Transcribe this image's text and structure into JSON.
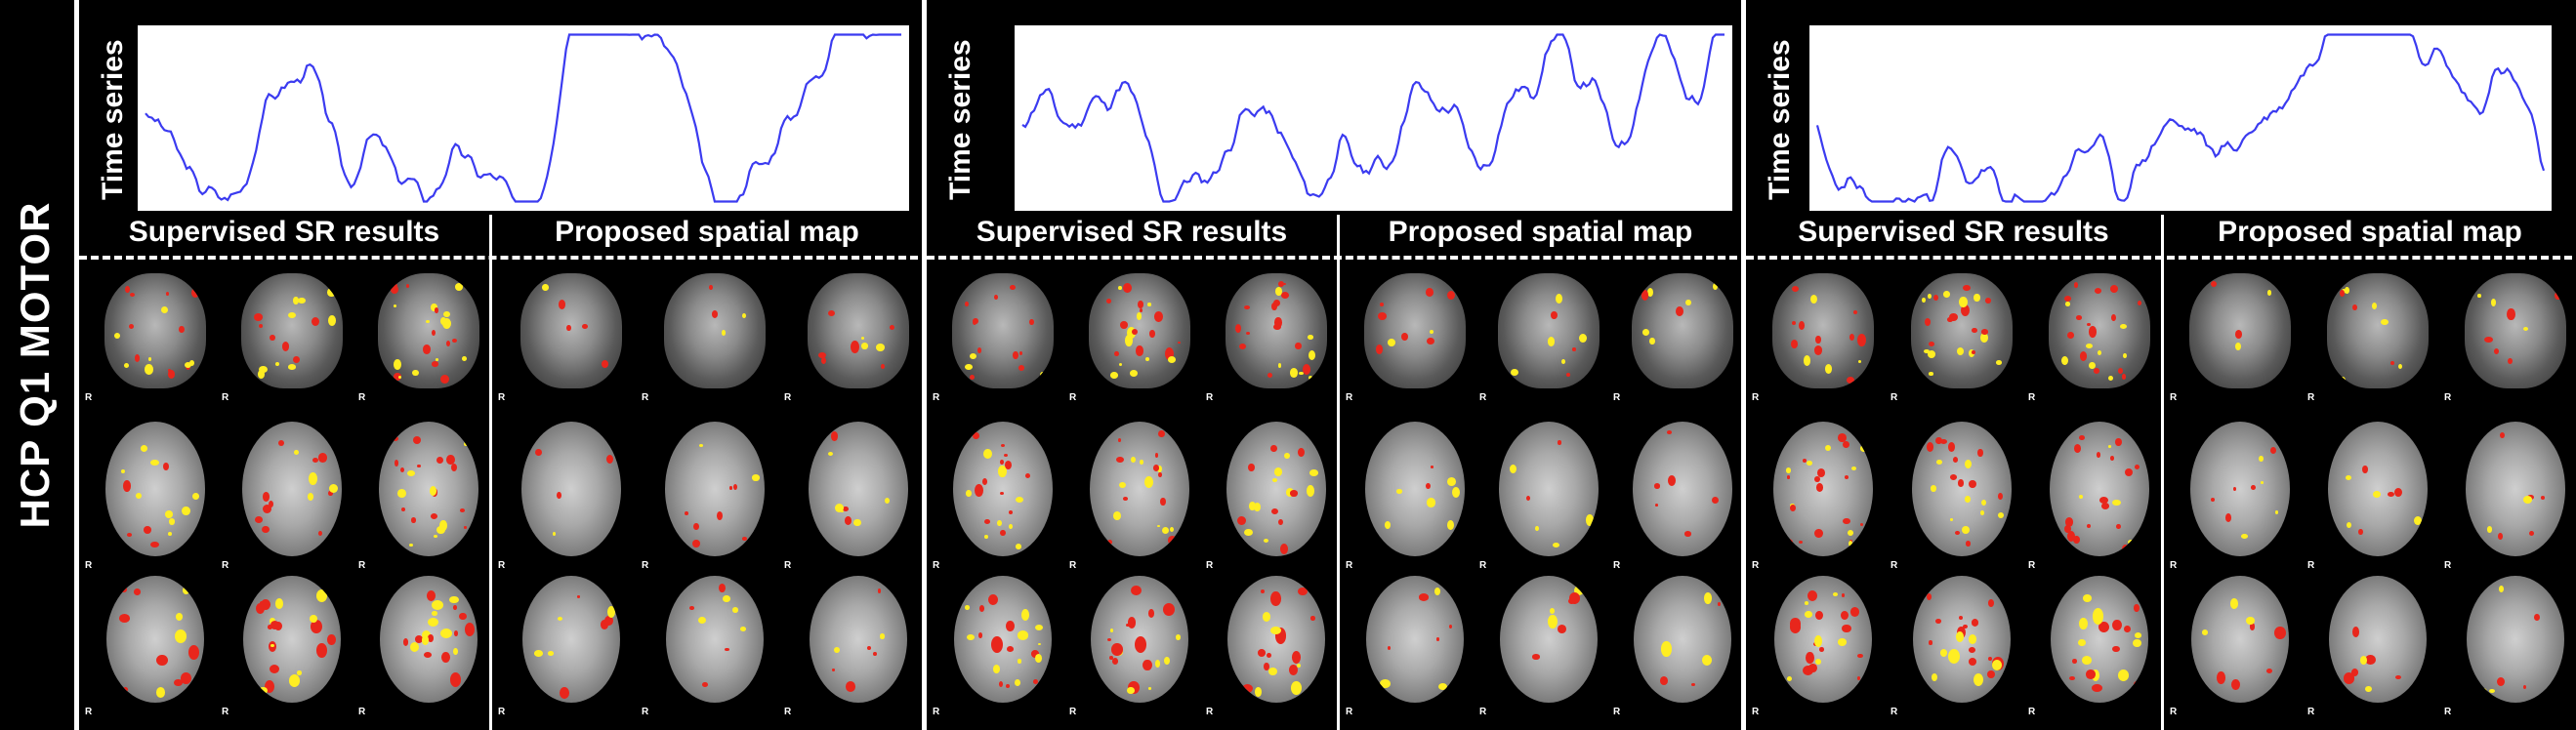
{
  "side_label": "HCP Q1 MOTOR",
  "colors": {
    "trace": "#3b3bf0",
    "activation_low": "#e8261c",
    "activation_high": "#ffee22"
  },
  "panels": [
    {
      "time_series_label": "Time series",
      "left_title": "Supervised SR results",
      "right_title": "Proposed spatial map",
      "orientation_marker": "R",
      "trace_seed": 3
    },
    {
      "time_series_label": "Time series",
      "left_title": "Supervised SR results",
      "right_title": "Proposed spatial map",
      "orientation_marker": "R",
      "trace_seed": 11
    },
    {
      "time_series_label": "Time series",
      "left_title": "Supervised SR results",
      "right_title": "Proposed spatial map",
      "orientation_marker": "R",
      "trace_seed": 23
    }
  ]
}
